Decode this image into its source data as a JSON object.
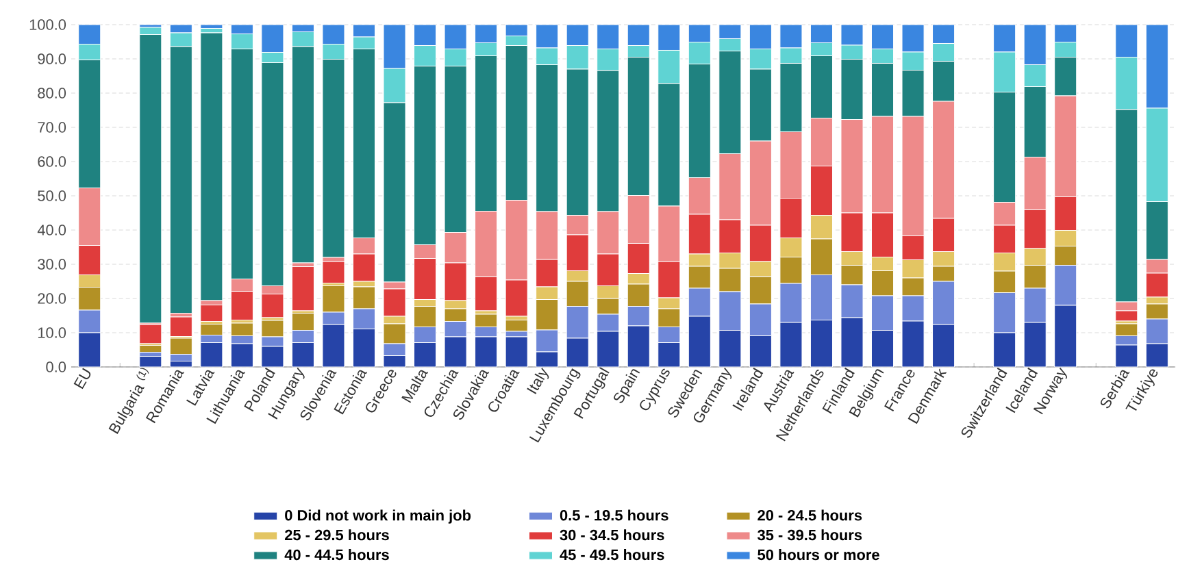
{
  "chart_data": {
    "type": "bar",
    "stacked": true,
    "categories": [
      "EU",
      null,
      "Bulgaria $^{(1)}$",
      "Romania",
      "Latvia",
      "Lithuania",
      "Poland",
      "Hungary",
      "Slovenia",
      "Estonia",
      "Greece",
      "Malta",
      "Czechia",
      "Slovakia",
      "Croatia",
      "Italy",
      "Luxembourg",
      "Portugal",
      "Spain",
      "Cyprus",
      "Sweden",
      "Germany",
      "Ireland",
      "Austria",
      "Netherlands",
      "Finland",
      "Belgium",
      "France",
      "Denmark",
      null,
      "Switzerland",
      "Iceland",
      "Norway",
      null,
      "Serbia",
      "Türkiye"
    ],
    "series": [
      {
        "name": "0 Did not work in main job",
        "color": "#2644a8",
        "values": [
          10.0,
          null,
          3.1,
          1.7,
          7.1,
          6.8,
          6.0,
          7.1,
          12.4,
          11.1,
          3.3,
          7.1,
          8.8,
          8.8,
          8.8,
          4.4,
          8.4,
          10.4,
          12.0,
          7.1,
          14.8,
          10.7,
          9.1,
          13.0,
          13.7,
          14.4,
          10.7,
          13.4,
          12.4,
          null,
          10.0,
          13.0,
          18.0,
          null,
          6.4,
          6.8
        ]
      },
      {
        "name": "0.5 - 19.5 hours",
        "color": "#6f87d8",
        "values": [
          6.6,
          null,
          1.2,
          2.0,
          2.2,
          2.3,
          2.8,
          3.6,
          3.6,
          5.9,
          3.5,
          4.6,
          4.5,
          2.9,
          1.6,
          6.4,
          9.3,
          5.0,
          5.7,
          4.6,
          8.2,
          11.3,
          9.3,
          11.4,
          13.2,
          9.6,
          10.1,
          7.4,
          12.6,
          null,
          11.7,
          10.0,
          11.7,
          null,
          2.7,
          7.2
        ]
      },
      {
        "name": "20 - 24.5 hours",
        "color": "#b39125",
        "values": [
          6.7,
          null,
          2.0,
          4.7,
          3.2,
          3.7,
          4.8,
          5.0,
          7.7,
          6.4,
          5.8,
          6.0,
          3.7,
          3.7,
          3.3,
          8.9,
          7.3,
          4.6,
          6.5,
          5.3,
          6.4,
          6.8,
          8.0,
          7.7,
          10.5,
          5.7,
          7.3,
          5.2,
          4.4,
          null,
          6.3,
          6.7,
          5.6,
          null,
          3.5,
          4.4
        ]
      },
      {
        "name": "25 - 29.5 hours",
        "color": "#e3c563",
        "values": [
          3.6,
          null,
          0.5,
          0.5,
          0.8,
          0.9,
          0.8,
          0.7,
          0.8,
          1.6,
          2.2,
          2.0,
          2.4,
          1.0,
          1.1,
          3.7,
          3.1,
          3.7,
          3.1,
          3.2,
          3.6,
          4.5,
          4.4,
          5.6,
          6.9,
          4.0,
          4.0,
          5.3,
          4.3,
          null,
          5.3,
          4.9,
          4.6,
          null,
          0.8,
          2.0
        ]
      },
      {
        "name": "30 - 34.5 hours",
        "color": "#e03c3c",
        "values": [
          8.6,
          null,
          5.5,
          5.7,
          4.8,
          8.4,
          6.9,
          12.9,
          6.3,
          8.0,
          8.0,
          12.0,
          11.0,
          10.0,
          10.6,
          8.0,
          10.5,
          9.3,
          8.8,
          10.6,
          11.6,
          9.7,
          10.6,
          11.6,
          14.4,
          11.3,
          12.9,
          7.0,
          9.7,
          null,
          8.1,
          11.3,
          9.8,
          null,
          3.0,
          7.0
        ]
      },
      {
        "name": "35 - 39.5 hours",
        "color": "#ee8a8a",
        "values": [
          16.8,
          null,
          0.5,
          1.1,
          1.3,
          3.6,
          2.4,
          1.1,
          1.2,
          4.7,
          2.0,
          4.0,
          8.9,
          19.1,
          23.3,
          14.0,
          5.7,
          12.4,
          14.0,
          16.2,
          10.7,
          19.3,
          24.6,
          19.4,
          14.0,
          27.3,
          28.2,
          34.9,
          34.2,
          null,
          6.7,
          15.4,
          29.5,
          null,
          2.6,
          4.0
        ]
      },
      {
        "name": "40 - 44.5 hours",
        "color": "#1f8280",
        "values": [
          37.4,
          null,
          84.3,
          77.9,
          78.2,
          67.2,
          65.2,
          63.2,
          57.9,
          55.2,
          52.4,
          52.2,
          48.6,
          45.4,
          45.2,
          42.9,
          42.7,
          41.2,
          40.4,
          35.8,
          33.2,
          30.0,
          21.0,
          20.0,
          18.2,
          17.6,
          15.5,
          13.5,
          11.7,
          null,
          32.2,
          20.6,
          11.3,
          null,
          56.2,
          16.9
        ]
      },
      {
        "name": "45 - 49.5 hours",
        "color": "#5fd3d3",
        "values": [
          4.6,
          null,
          2.1,
          4.0,
          1.3,
          4.4,
          3.0,
          4.3,
          4.4,
          3.5,
          10.0,
          6.0,
          5.0,
          3.8,
          2.8,
          4.9,
          6.9,
          6.3,
          3.4,
          9.7,
          6.4,
          3.6,
          5.9,
          4.5,
          3.8,
          4.1,
          4.2,
          5.3,
          5.2,
          null,
          11.7,
          6.4,
          4.4,
          null,
          15.3,
          27.3
        ]
      },
      {
        "name": "50 hours or more",
        "color": "#3a86e0",
        "values": [
          5.7,
          null,
          0.8,
          2.4,
          1.1,
          2.7,
          8.1,
          2.1,
          5.7,
          3.6,
          12.8,
          6.1,
          7.1,
          5.3,
          3.3,
          6.8,
          6.1,
          7.1,
          6.1,
          7.5,
          5.1,
          4.1,
          7.1,
          6.8,
          5.3,
          6.0,
          7.1,
          8.0,
          5.5,
          null,
          8.0,
          11.7,
          5.1,
          null,
          9.5,
          24.4
        ]
      }
    ],
    "ylim": [
      0,
      100
    ],
    "yticks": [
      {
        "value": 0,
        "label": "0.0"
      },
      {
        "value": 10,
        "label": "10.0"
      },
      {
        "value": 20,
        "label": "20.0"
      },
      {
        "value": 30,
        "label": "30.0"
      },
      {
        "value": 40,
        "label": "40.0"
      },
      {
        "value": 50,
        "label": "50.0"
      },
      {
        "value": 60,
        "label": "60.0"
      },
      {
        "value": 70,
        "label": "70.0"
      },
      {
        "value": 80,
        "label": "80.0"
      },
      {
        "value": 90,
        "label": "90.0"
      },
      {
        "value": 100,
        "label": "100.0"
      }
    ],
    "grid": "y",
    "legend": "bottom"
  }
}
